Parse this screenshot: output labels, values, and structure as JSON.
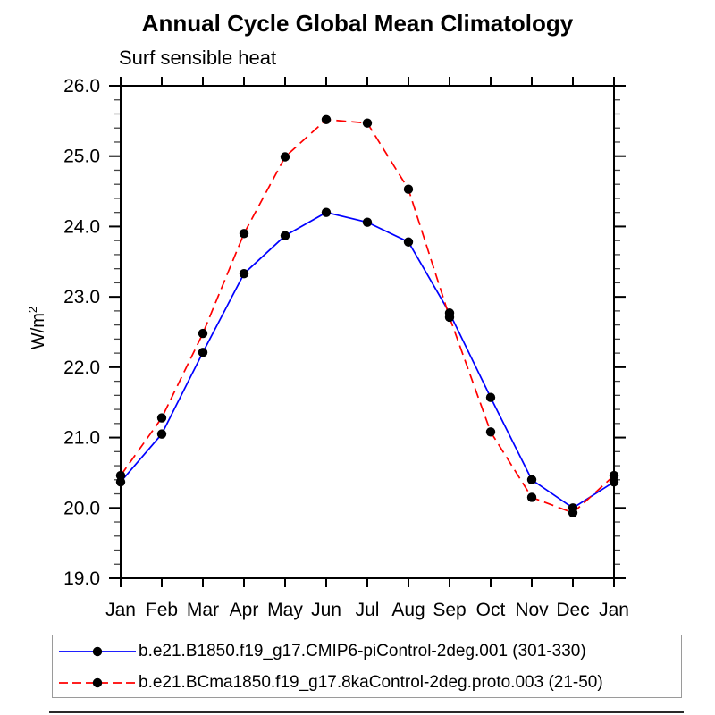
{
  "chart_data": {
    "type": "line",
    "title": "Annual Cycle Global Mean Climatology",
    "subtitle": "Surf sensible heat",
    "ylabel_base": "W/m",
    "ylabel_sup": "2",
    "x_categories": [
      "Jan",
      "Feb",
      "Mar",
      "Apr",
      "May",
      "Jun",
      "Jul",
      "Aug",
      "Sep",
      "Oct",
      "Nov",
      "Dec",
      "Jan"
    ],
    "ylim": [
      19.0,
      26.0
    ],
    "y_major_step": 1.0,
    "y_minor_step": 0.2,
    "y_tick_labels": [
      "19.0",
      "20.0",
      "21.0",
      "22.0",
      "23.0",
      "24.0",
      "25.0",
      "26.0"
    ],
    "grid": false,
    "legend_position": "bottom",
    "axis_color": "#000000",
    "marker_color": "#000000",
    "series": [
      {
        "name": "b.e21.B1850.f19_g17.CMIP6-piControl-2deg.001 (301-330)",
        "color": "#0000ff",
        "style": "solid",
        "marker": "filled-circle",
        "values": [
          20.37,
          21.05,
          22.21,
          23.33,
          23.87,
          24.2,
          24.06,
          23.78,
          22.77,
          21.57,
          20.4,
          20.0,
          20.37
        ]
      },
      {
        "name": "b.e21.BCma1850.f19_g17.8kaControl-2deg.proto.003 (21-50)",
        "color": "#ff0000",
        "style": "dashed",
        "marker": "filled-circle",
        "values": [
          20.46,
          21.28,
          22.48,
          23.9,
          24.99,
          25.52,
          25.47,
          24.53,
          22.71,
          21.08,
          20.15,
          19.93,
          20.46
        ]
      }
    ]
  }
}
